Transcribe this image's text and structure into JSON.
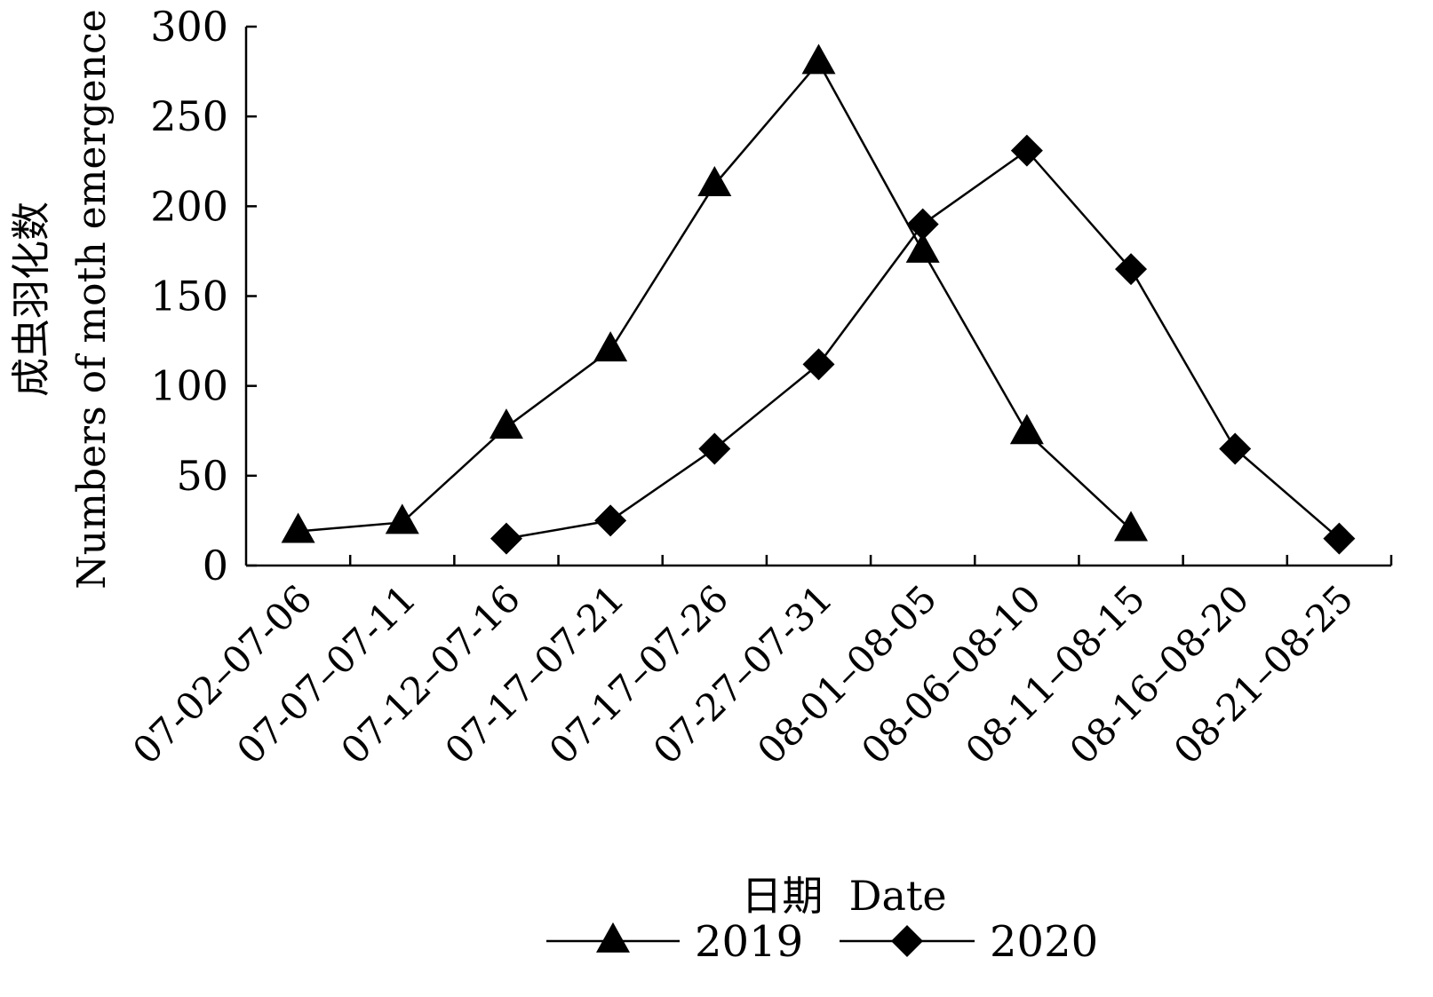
{
  "chart_data": {
    "type": "line",
    "categories": [
      "07-02–07-06",
      "07-07–07-11",
      "07-12–07-16",
      "07-17–07-21",
      "07-17–07-26",
      "07-27–07-31",
      "08-01–08-05",
      "08-06–08-10",
      "08-11–08-15",
      "08-16–08-20",
      "08-21–08-25"
    ],
    "series": [
      {
        "name": "2019",
        "marker": "triangle",
        "values": [
          19,
          24,
          77,
          120,
          212,
          280,
          175,
          74,
          20,
          null,
          null
        ]
      },
      {
        "name": "2020",
        "marker": "diamond",
        "values": [
          null,
          null,
          15,
          25,
          65,
          112,
          190,
          231,
          165,
          65,
          15
        ]
      }
    ],
    "xlabel": "日期  Date",
    "ylabel_zh": "成虫羽化数",
    "ylabel_en": "Numbers of moth emergence",
    "ylim": [
      0,
      300
    ],
    "yticks": [
      0,
      50,
      100,
      150,
      200,
      250,
      300
    ],
    "legend_position": "bottom",
    "grid": false,
    "color": "#000000"
  }
}
